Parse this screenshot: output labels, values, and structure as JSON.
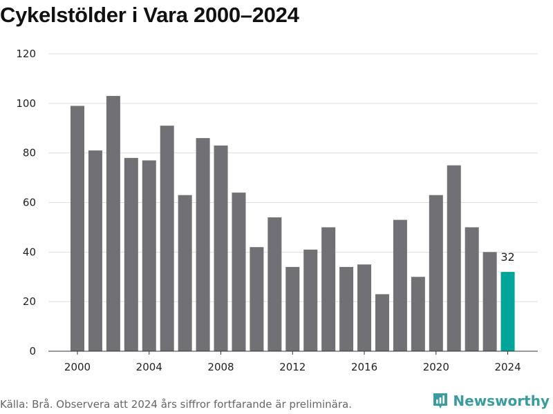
{
  "header": {
    "title": "Cykelstölder i Vara 2000–2024"
  },
  "footer": {
    "source": "Källa: Brå. Observera att 2024 års siffror fortfarande är preliminära.",
    "brand": "Newsworthy",
    "brand_icon": "newsworthy-logo-icon"
  },
  "colors": {
    "bar": "#707075",
    "highlight": "#00a59a",
    "grid": "#dddddd",
    "axis": "#333333",
    "brand": "#3a9c9e"
  },
  "chart_data": {
    "type": "bar",
    "title": "Cykelstölder i Vara 2000–2024",
    "xlabel": "",
    "ylabel": "",
    "categories": [
      "2000",
      "2001",
      "2002",
      "2003",
      "2004",
      "2005",
      "2006",
      "2007",
      "2008",
      "2009",
      "2010",
      "2011",
      "2012",
      "2013",
      "2014",
      "2015",
      "2016",
      "2017",
      "2018",
      "2019",
      "2020",
      "2021",
      "2022",
      "2023",
      "2024"
    ],
    "values": [
      99,
      81,
      103,
      78,
      77,
      91,
      63,
      86,
      83,
      64,
      42,
      54,
      34,
      41,
      50,
      34,
      35,
      23,
      53,
      30,
      63,
      75,
      50,
      40,
      32
    ],
    "ylim": [
      0,
      120
    ],
    "yticks": [
      0,
      20,
      40,
      60,
      80,
      100,
      120
    ],
    "ytick_labels": [
      "0",
      "20",
      "40",
      "60",
      "80",
      "100",
      "120"
    ],
    "xtick_labels": [
      "2000",
      "2004",
      "2008",
      "2012",
      "2016",
      "2020",
      "2024"
    ],
    "grid": true,
    "highlight_index": 24,
    "highlight_label": "32"
  }
}
